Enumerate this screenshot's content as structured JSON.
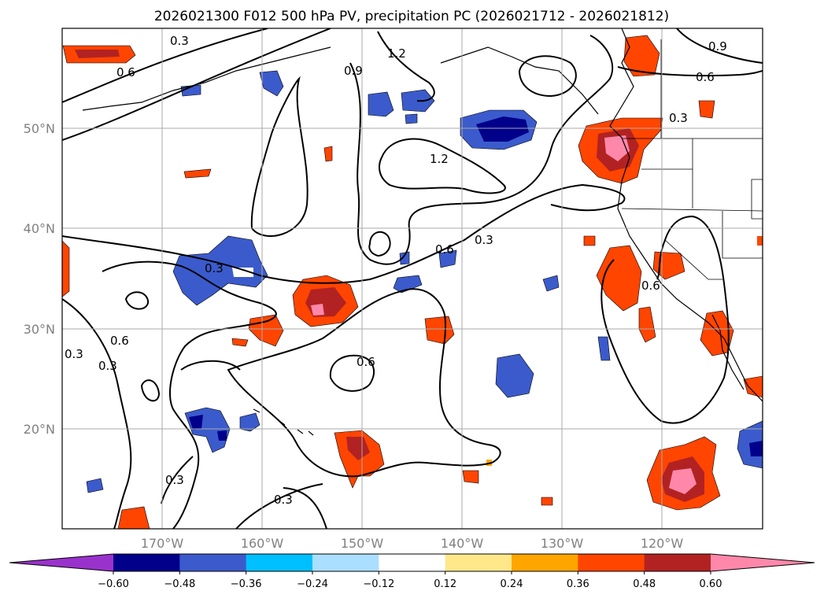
{
  "title": "2026021300 F012 500 hPa PV, precipitation PC (2026021712 - 2026021812)",
  "map": {
    "lon_labels": [
      "170°W",
      "160°W",
      "150°W",
      "140°W",
      "130°W",
      "120°W"
    ],
    "lat_labels": [
      "50°N",
      "40°N",
      "30°N",
      "20°N"
    ],
    "pv_contour_labels": [
      "0.3",
      "0.6",
      "0.9",
      "1.2"
    ]
  },
  "colorbar": {
    "ticks": [
      "−0.60",
      "−0.48",
      "−0.36",
      "−0.24",
      "−0.12",
      "0.12",
      "0.24",
      "0.36",
      "0.48",
      "0.60"
    ],
    "colors": [
      "#9932cc",
      "#00008b",
      "#3b5bcc",
      "#00bfff",
      "#aadfff",
      "#ffffff",
      "#ffe88a",
      "#ffa500",
      "#ff4500",
      "#b22222",
      "#ff88aa"
    ]
  }
}
